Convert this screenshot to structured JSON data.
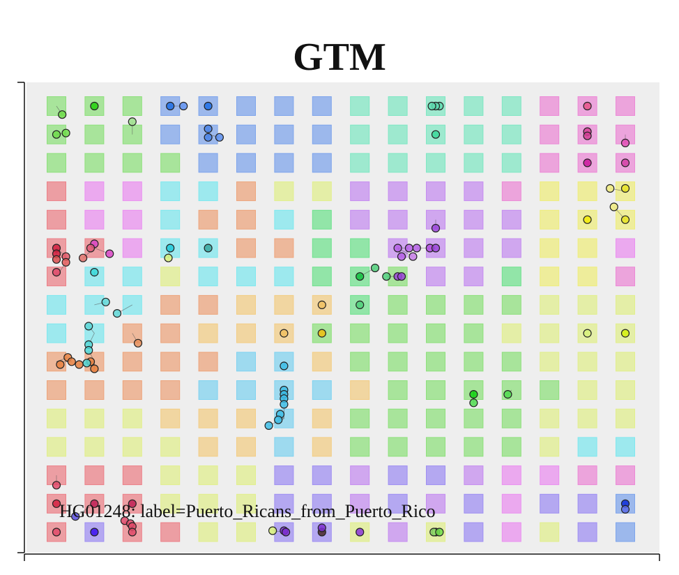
{
  "title": "GTM",
  "tooltip": "HG01248: label=Puerto_Ricans_from_Puerto_Rico",
  "palette": {
    "G": "#8ee07c",
    "B": "#7da4ec",
    "T": "#7fe7c4",
    "P": "#ec88d6",
    "R": "#ec7f87",
    "M": "#ea8ff0",
    "C": "#7ee8ef",
    "O": "#eda47b",
    "L": "#e1ef8c",
    "V": "#c58cf0",
    "Y": "#eeed7c",
    "A": "#f3cd84",
    "S": "#7fd2f0",
    "I": "#9e8ef2",
    "N": "#6fe28e"
  },
  "chart_data": {
    "type": "scatter",
    "title": "GTM",
    "xlabel": "",
    "ylabel": "",
    "grid_cols": 16,
    "grid_rows": 16,
    "background_grid": [
      "GGGBBBBBTTTTTPPP",
      "GGGBBBBBTTTTTPPP",
      "GGGGBBBBTTTTTPPP",
      "RMMCCOLLVVVVPYYY",
      "RMMCOOCNVVVVVYYY",
      "RRMCCOONNVVVVYYM",
      "RCCLCCCNNGVVNYYP",
      "CCCOOAAANGGGGLLL",
      "CCOOAAAGGGGGLLLL",
      "OOOOOSSAGGGGGLLL",
      "OOOOSSSSAGGGGGLL",
      "LLLAAASAGGGGGLLL",
      "LLLLAASAGGGGGLCC",
      "RRRLLLIIVIIVMMPP",
      "RRRLLLIIVIVIMIIB",
      "RIRRLLIILVLIMLIB"
    ],
    "points": [
      {
        "x": 0.15,
        "y": 0.3,
        "c": "#6fdc4a"
      },
      {
        "x": 0.0,
        "y": 1.0,
        "c": "#6fdc4a"
      },
      {
        "x": 0.25,
        "y": 0.95,
        "c": "#6fdc4a"
      },
      {
        "x": 1.0,
        "y": 0.0,
        "c": "#22d10a"
      },
      {
        "x": 2.0,
        "y": 0.55,
        "c": "#9be08a"
      },
      {
        "x": 3.0,
        "y": 0.0,
        "c": "#1f6fe6"
      },
      {
        "x": 3.35,
        "y": 0.0,
        "c": "#5a8ef0"
      },
      {
        "x": 4.0,
        "y": 0.0,
        "c": "#1f6fe6"
      },
      {
        "x": 4.0,
        "y": 0.8,
        "c": "#4a82e8"
      },
      {
        "x": 4.0,
        "y": 1.1,
        "c": "#4a82e8"
      },
      {
        "x": 4.3,
        "y": 1.1,
        "c": "#5a8ef0"
      },
      {
        "x": 10.1,
        "y": 0.0,
        "c": "#5fdcb0"
      },
      {
        "x": 10.0,
        "y": 0.0,
        "c": "#5fdcb0"
      },
      {
        "x": 9.9,
        "y": 0.0,
        "c": "#5fdcb0"
      },
      {
        "x": 10.0,
        "y": 1.0,
        "c": "#39d89a"
      },
      {
        "x": 14.0,
        "y": 0.0,
        "c": "#e8558a"
      },
      {
        "x": 14.0,
        "y": 0.9,
        "c": "#d43f95"
      },
      {
        "x": 14.0,
        "y": 1.05,
        "c": "#d43f95"
      },
      {
        "x": 15.0,
        "y": 1.3,
        "c": "#e34fb6"
      },
      {
        "x": 14.0,
        "y": 2.0,
        "c": "#c9179b"
      },
      {
        "x": 15.0,
        "y": 2.0,
        "c": "#d43fa5"
      },
      {
        "x": 14.6,
        "y": 2.9,
        "c": "#f0eb7c"
      },
      {
        "x": 15.0,
        "y": 2.9,
        "c": "#e8e325"
      },
      {
        "x": 14.7,
        "y": 3.55,
        "c": "#f0eb7c"
      },
      {
        "x": 14.0,
        "y": 4.0,
        "c": "#f2ea05"
      },
      {
        "x": 15.0,
        "y": 4.0,
        "c": "#e8e325"
      },
      {
        "x": 1.0,
        "y": 4.85,
        "c": "#d944c4"
      },
      {
        "x": 0.9,
        "y": 5.0,
        "c": "#e05a7a"
      },
      {
        "x": 1.4,
        "y": 5.2,
        "c": "#d944c4"
      },
      {
        "x": 0.7,
        "y": 5.35,
        "c": "#e0706a"
      },
      {
        "x": 0.25,
        "y": 5.3,
        "c": "#e05a6a"
      },
      {
        "x": 0.25,
        "y": 5.5,
        "c": "#e35a5a"
      },
      {
        "x": 0.0,
        "y": 5.0,
        "c": "#d41f3f"
      },
      {
        "x": 0.0,
        "y": 5.2,
        "c": "#d41f3f"
      },
      {
        "x": 0.0,
        "y": 5.4,
        "c": "#d94c4c"
      },
      {
        "x": 0.0,
        "y": 5.85,
        "c": "#df4a6a"
      },
      {
        "x": 3.0,
        "y": 5.0,
        "c": "#1fc9d9"
      },
      {
        "x": 2.95,
        "y": 5.35,
        "c": "#d7f07a"
      },
      {
        "x": 4.0,
        "y": 5.0,
        "c": "#3aa79f"
      },
      {
        "x": 1.0,
        "y": 5.85,
        "c": "#39d8d8"
      },
      {
        "x": 10.0,
        "y": 4.3,
        "c": "#9b45d9"
      },
      {
        "x": 9.85,
        "y": 5.0,
        "c": "#b34fe0"
      },
      {
        "x": 10.0,
        "y": 5.0,
        "c": "#9b45d9"
      },
      {
        "x": 9.0,
        "y": 5.0,
        "c": "#b55fe6"
      },
      {
        "x": 9.3,
        "y": 5.0,
        "c": "#b55fe6"
      },
      {
        "x": 9.5,
        "y": 5.0,
        "c": "#b55fe6"
      },
      {
        "x": 9.4,
        "y": 5.3,
        "c": "#c77de8"
      },
      {
        "x": 9.1,
        "y": 5.3,
        "c": "#b55fe6"
      },
      {
        "x": 8.4,
        "y": 5.7,
        "c": "#4fcf7a"
      },
      {
        "x": 8.7,
        "y": 6.0,
        "c": "#4fcf7a"
      },
      {
        "x": 9.0,
        "y": 6.0,
        "c": "#9b45d9"
      },
      {
        "x": 9.1,
        "y": 6.0,
        "c": "#9b45d9"
      },
      {
        "x": 8.0,
        "y": 6.0,
        "c": "#10c040"
      },
      {
        "x": 8.0,
        "y": 7.0,
        "c": "#4fcf7a"
      },
      {
        "x": 7.0,
        "y": 7.0,
        "c": "#f0c060"
      },
      {
        "x": 1.3,
        "y": 6.9,
        "c": "#5fd8d8"
      },
      {
        "x": 1.6,
        "y": 7.3,
        "c": "#5fd8d8"
      },
      {
        "x": 0.85,
        "y": 7.75,
        "c": "#5fd8d8"
      },
      {
        "x": 7.0,
        "y": 8.0,
        "c": "#eebe0e"
      },
      {
        "x": 6.0,
        "y": 8.0,
        "c": "#f0c060"
      },
      {
        "x": 15.0,
        "y": 8.0,
        "c": "#d5f00a"
      },
      {
        "x": 14.0,
        "y": 8.0,
        "c": "#d7f07a"
      },
      {
        "x": 2.15,
        "y": 8.35,
        "c": "#e88f5a"
      },
      {
        "x": 0.85,
        "y": 8.4,
        "c": "#4fd8d8"
      },
      {
        "x": 0.85,
        "y": 8.6,
        "c": "#4fd8d8"
      },
      {
        "x": 0.3,
        "y": 8.85,
        "c": "#e88040"
      },
      {
        "x": 0.1,
        "y": 9.1,
        "c": "#e88040"
      },
      {
        "x": 0.4,
        "y": 9.0,
        "c": "#e88040"
      },
      {
        "x": 0.6,
        "y": 9.1,
        "c": "#e88040"
      },
      {
        "x": 0.9,
        "y": 9.0,
        "c": "#e88040"
      },
      {
        "x": 1.0,
        "y": 9.25,
        "c": "#e88040"
      },
      {
        "x": 0.8,
        "y": 9.05,
        "c": "#4fd8d8"
      },
      {
        "x": 6.0,
        "y": 9.15,
        "c": "#3cbde6"
      },
      {
        "x": 6.0,
        "y": 10.0,
        "c": "#3cbde6"
      },
      {
        "x": 6.0,
        "y": 10.15,
        "c": "#3cbde6"
      },
      {
        "x": 6.0,
        "y": 10.3,
        "c": "#3cbde6"
      },
      {
        "x": 6.0,
        "y": 10.5,
        "c": "#3cbde6"
      },
      {
        "x": 5.9,
        "y": 10.85,
        "c": "#3cbde6"
      },
      {
        "x": 5.85,
        "y": 11.05,
        "c": "#3cbde6"
      },
      {
        "x": 5.6,
        "y": 11.25,
        "c": "#3cbde6"
      },
      {
        "x": 11.0,
        "y": 10.15,
        "c": "#0ed20e"
      },
      {
        "x": 11.0,
        "y": 10.45,
        "c": "#4fdc4f"
      },
      {
        "x": 11.9,
        "y": 10.15,
        "c": "#4fdc4f"
      },
      {
        "x": 0.0,
        "y": 13.35,
        "c": "#e04a6a"
      },
      {
        "x": 0.0,
        "y": 14.0,
        "c": "#d41f3f"
      },
      {
        "x": 1.0,
        "y": 14.0,
        "c": "#c01f55"
      },
      {
        "x": 2.0,
        "y": 14.0,
        "c": "#c01f55"
      },
      {
        "x": 0.5,
        "y": 14.45,
        "c": "#5a4fe0"
      },
      {
        "x": 1.8,
        "y": 14.6,
        "c": "#e04a6a"
      },
      {
        "x": 1.95,
        "y": 14.7,
        "c": "#e04a6a"
      },
      {
        "x": 2.0,
        "y": 14.8,
        "c": "#e04a6a"
      },
      {
        "x": 0.0,
        "y": 15.0,
        "c": "#e04a6a"
      },
      {
        "x": 1.0,
        "y": 15.0,
        "c": "#3a0ff0"
      },
      {
        "x": 2.0,
        "y": 15.0,
        "c": "#e04a6a"
      },
      {
        "x": 5.7,
        "y": 14.95,
        "c": "#d7f07a"
      },
      {
        "x": 6.0,
        "y": 14.95,
        "c": "#7c2fd0"
      },
      {
        "x": 7.0,
        "y": 15.0,
        "c": "#4a2a2a"
      },
      {
        "x": 7.0,
        "y": 14.85,
        "c": "#7c2fd0"
      },
      {
        "x": 6.05,
        "y": 15.0,
        "c": "#7c2fd0"
      },
      {
        "x": 8.0,
        "y": 15.0,
        "c": "#8a35d8"
      },
      {
        "x": 10.0,
        "y": 15.0,
        "c": "#8fd86a"
      },
      {
        "x": 9.95,
        "y": 15.0,
        "c": "#8fd86a"
      },
      {
        "x": 10.1,
        "y": 15.0,
        "c": "#6fdc4a"
      },
      {
        "x": 15.0,
        "y": 14.0,
        "c": "#0a2ad8"
      },
      {
        "x": 15.0,
        "y": 14.2,
        "c": "#5a6ae8"
      }
    ]
  }
}
